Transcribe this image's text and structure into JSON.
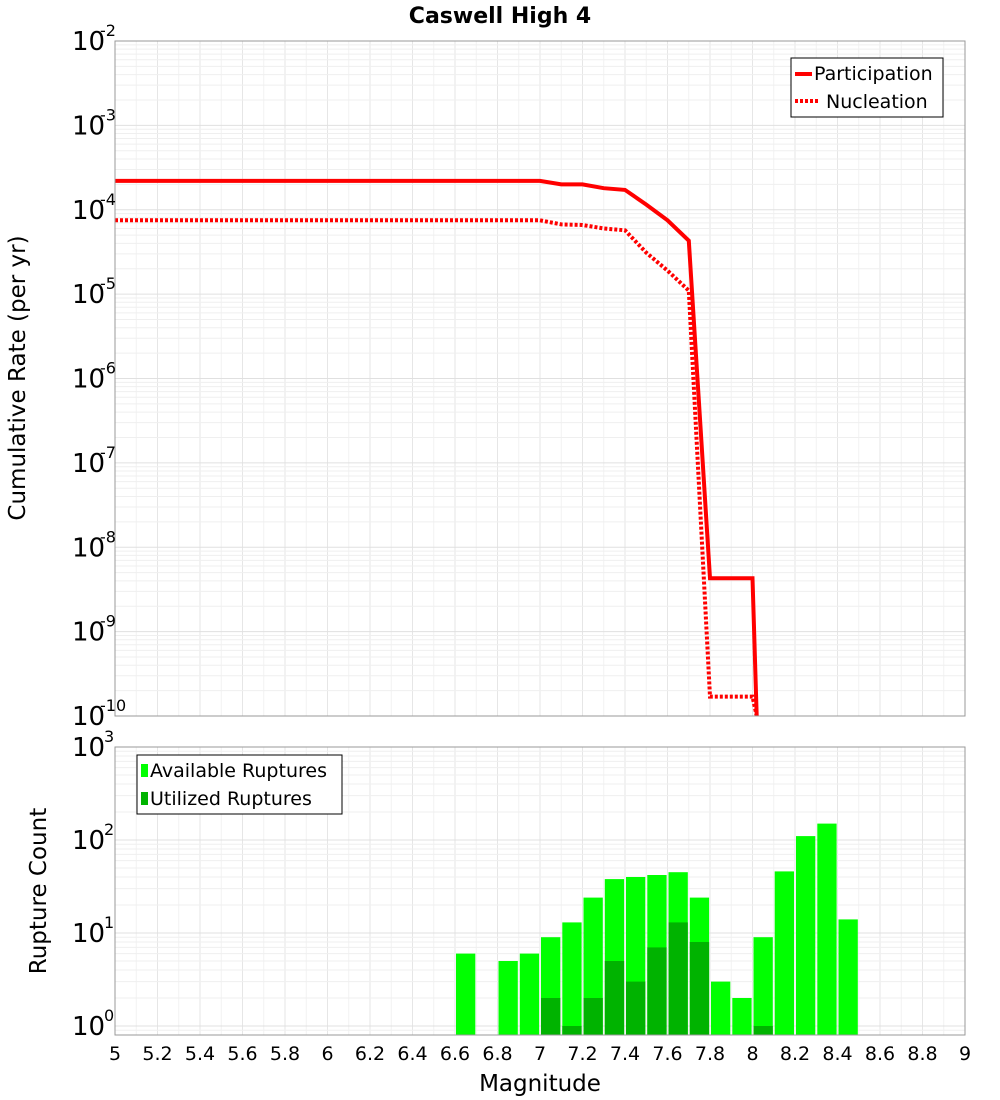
{
  "chart_data": [
    {
      "type": "line",
      "title": "Caswell High 4",
      "xlabel": "",
      "ylabel": "Cumulative Rate (per yr)",
      "xlim": [
        5,
        9
      ],
      "ylim": [
        1e-10,
        0.01
      ],
      "yscale": "log",
      "ytick_labels": [
        {
          "base": "10",
          "exp": "-10"
        },
        {
          "base": "10",
          "exp": "-9"
        },
        {
          "base": "10",
          "exp": "-8"
        },
        {
          "base": "10",
          "exp": "-7"
        },
        {
          "base": "10",
          "exp": "-6"
        },
        {
          "base": "10",
          "exp": "-5"
        },
        {
          "base": "10",
          "exp": "-4"
        },
        {
          "base": "10",
          "exp": "-3"
        },
        {
          "base": "10",
          "exp": "-2"
        }
      ],
      "grid": true,
      "legend_position": "top-right",
      "series": [
        {
          "name": "Participation",
          "style": "solid",
          "color": "#ff0000",
          "x": [
            5.0,
            7.0,
            7.1,
            7.2,
            7.3,
            7.4,
            7.5,
            7.6,
            7.7,
            7.8,
            8.0,
            8.02
          ],
          "y": [
            0.00022,
            0.00022,
            0.0002,
            0.0002,
            0.00018,
            0.000172,
            0.000115,
            7.5e-05,
            4.3e-05,
            4.3e-09,
            4.3e-09,
            1e-10
          ]
        },
        {
          "name": "Nucleation",
          "style": "dotted",
          "color": "#ff0000",
          "x": [
            5.0,
            7.0,
            7.1,
            7.2,
            7.3,
            7.4,
            7.5,
            7.6,
            7.7,
            7.8,
            8.0,
            8.02
          ],
          "y": [
            7.5e-05,
            7.5e-05,
            6.7e-05,
            6.6e-05,
            6e-05,
            5.7e-05,
            3.1e-05,
            1.9e-05,
            1.1e-05,
            1.7e-10,
            1.7e-10,
            1e-10
          ]
        }
      ]
    },
    {
      "type": "bar",
      "title": "",
      "xlabel": "Magnitude",
      "ylabel": "Rupture Count",
      "xlim": [
        5,
        9
      ],
      "ylim": [
        0.8,
        1000
      ],
      "yscale": "log",
      "ytick_labels": [
        {
          "base": "10",
          "exp": "0"
        },
        {
          "base": "10",
          "exp": "1"
        },
        {
          "base": "10",
          "exp": "2"
        },
        {
          "base": "10",
          "exp": "3"
        }
      ],
      "xtick_labels": [
        "5",
        "5.2",
        "5.4",
        "5.6",
        "5.8",
        "6",
        "6.2",
        "6.4",
        "6.6",
        "6.8",
        "7",
        "7.2",
        "7.4",
        "7.6",
        "7.8",
        "8",
        "8.2",
        "8.4",
        "8.6",
        "8.8",
        "9"
      ],
      "grid": true,
      "legend_position": "top-left",
      "series": [
        {
          "name": "Available Ruptures",
          "color": "#00ff00",
          "x": [
            6.6,
            6.8,
            6.9,
            7.0,
            7.1,
            7.2,
            7.3,
            7.4,
            7.5,
            7.6,
            7.7,
            7.8,
            7.9,
            8.0,
            8.1,
            8.2,
            8.3,
            8.4
          ],
          "values": [
            6,
            5,
            6,
            9,
            13,
            24,
            38,
            40,
            42,
            45,
            24,
            3,
            2,
            9,
            46,
            110,
            150,
            14
          ]
        },
        {
          "name": "Utilized Ruptures",
          "color": "#00b300",
          "x": [
            7.0,
            7.1,
            7.2,
            7.3,
            7.4,
            7.5,
            7.6,
            7.7,
            8.0
          ],
          "values": [
            2,
            1,
            2,
            5,
            3,
            7,
            13,
            8,
            1
          ]
        }
      ]
    }
  ]
}
